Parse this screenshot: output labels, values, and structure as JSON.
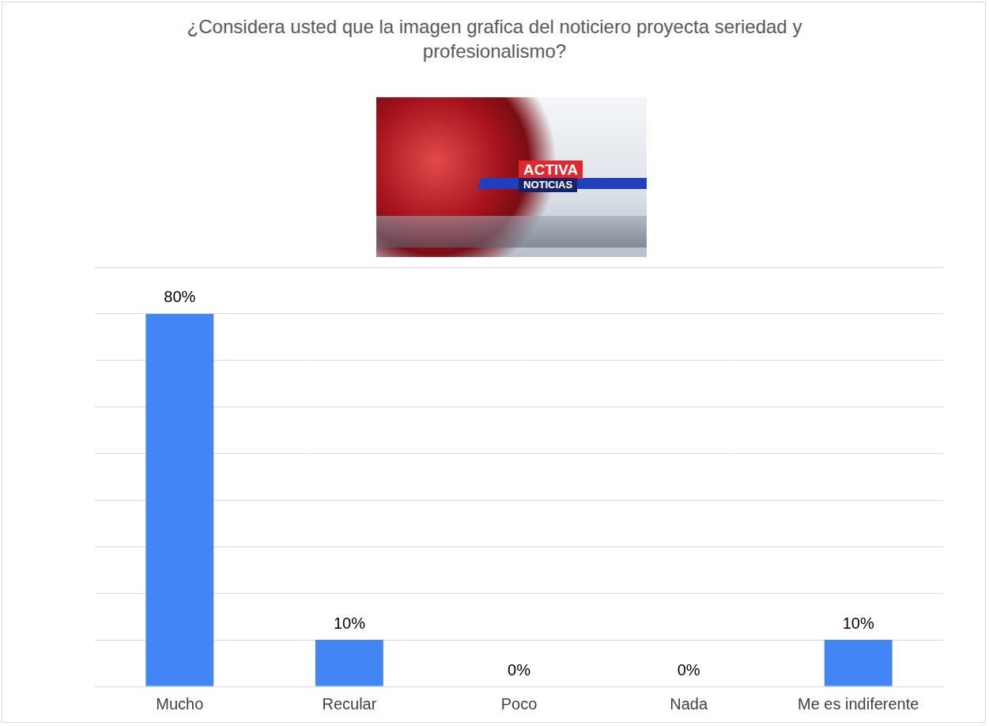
{
  "chart_data": {
    "type": "bar",
    "title": "¿Considera usted que la imagen grafica del noticiero proyecta seriedad y profesionalismo?",
    "annotations": [
      "ACTIVA",
      "NOTICIAS"
    ],
    "categories": [
      "Mucho",
      "Recular",
      "Poco",
      "Nada",
      "Me es indiferente"
    ],
    "values": [
      80,
      10,
      0,
      0,
      10
    ],
    "value_labels": [
      "80%",
      "10%",
      "0%",
      "0%",
      "10%"
    ],
    "data_labels": true,
    "color": "#4285f4",
    "ylim": [
      0,
      90
    ],
    "yticks": [
      0,
      10,
      20,
      30,
      40,
      50,
      60,
      70,
      80,
      90
    ],
    "grid": true,
    "tick_labels": "x"
  }
}
